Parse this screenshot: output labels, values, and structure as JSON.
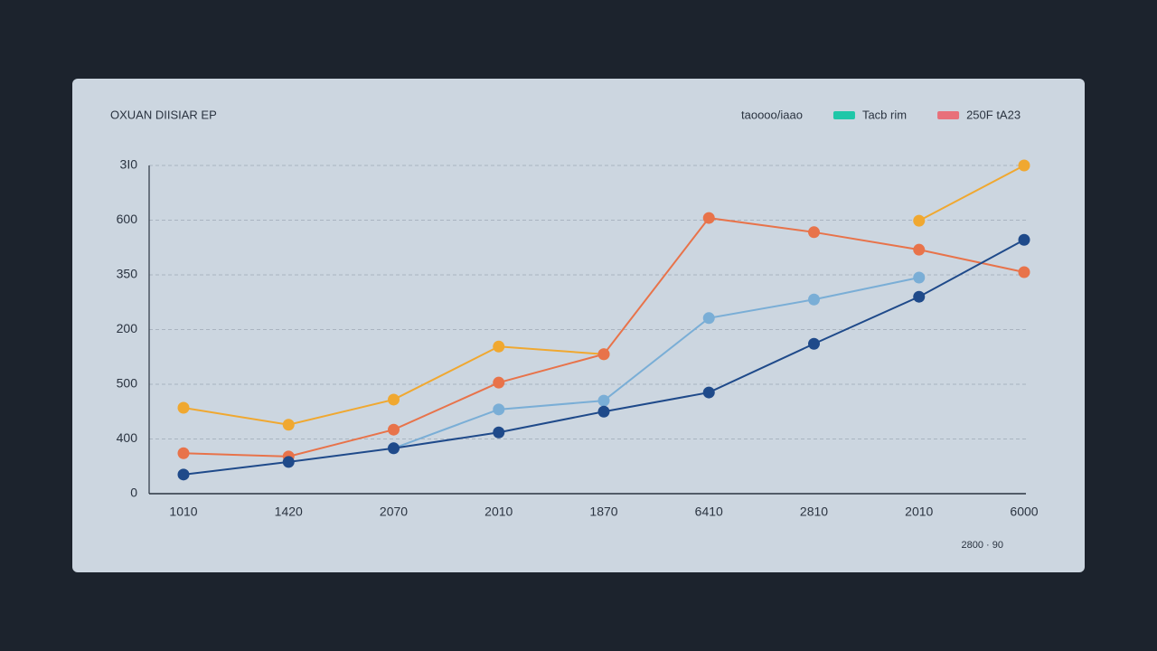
{
  "chart_data": {
    "type": "line",
    "title": "OXUAN DIISIAR EP",
    "legend": [
      {
        "label": "taoooo/iaao",
        "color": null
      },
      {
        "label": "Tacb rim",
        "color": "#1fc7a8"
      },
      {
        "label": "250F tA23",
        "color": "#e8707a"
      }
    ],
    "footer": "2800 · 90",
    "categories": [
      "1010",
      "1420",
      "2070",
      "2010",
      "1870",
      "6410",
      "2810",
      "2010",
      "6000"
    ],
    "series": [
      {
        "color": "#f0a830",
        "values": [
          1.57,
          1.26,
          1.72,
          2.69,
          2.55,
          null,
          null,
          4.99,
          6.0
        ]
      },
      {
        "color": "#e8734a",
        "values": [
          0.74,
          0.68,
          1.17,
          2.03,
          2.55,
          5.04,
          4.78,
          4.46,
          4.05
        ]
      },
      {
        "color": "#7aaed6",
        "values": [
          null,
          null,
          0.83,
          1.54,
          1.7,
          3.21,
          3.55,
          3.95,
          null
        ]
      },
      {
        "color": "#1f4a8a",
        "values": [
          0.35,
          0.58,
          0.83,
          1.12,
          1.5,
          1.85,
          2.74,
          3.6,
          4.64
        ]
      }
    ],
    "ylim": [
      0,
      6
    ],
    "yticks": [
      {
        "value": 0,
        "label": "0"
      },
      {
        "value": 1,
        "label": "400"
      },
      {
        "value": 2,
        "label": "500"
      },
      {
        "value": 3,
        "label": "200"
      },
      {
        "value": 4,
        "label": "350"
      },
      {
        "value": 5,
        "label": "600"
      },
      {
        "value": 6,
        "label": "3I0"
      }
    ],
    "grid": true
  }
}
